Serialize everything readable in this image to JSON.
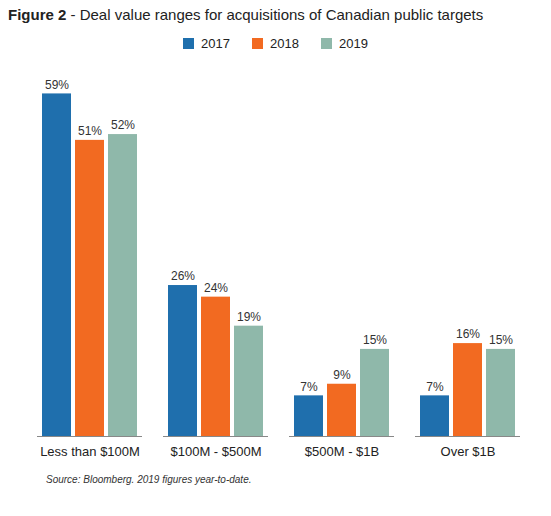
{
  "chart_data": {
    "type": "bar",
    "title": "Figure 2 - Deal value ranges for acquisitions of Canadian public targets",
    "caption": "Source: Bloomberg. 2019 figures year-to-date.",
    "categories": [
      "Less than $100M",
      "$100M - $500M",
      "$500M - $1B",
      "Over $1B"
    ],
    "series": [
      {
        "name": "2017",
        "color": "#1f6fad",
        "values": [
          59,
          26,
          7,
          7
        ],
        "value_labels": [
          "59%",
          "26%",
          "7%",
          "7%"
        ]
      },
      {
        "name": "2018",
        "color": "#f26a21",
        "values": [
          51,
          24,
          9,
          16
        ],
        "value_labels": [
          "51%",
          "24%",
          "9%",
          "16%"
        ]
      },
      {
        "name": "2019",
        "color": "#8fb8aa",
        "values": [
          52,
          19,
          15,
          15
        ],
        "value_labels": [
          "52%",
          "19%",
          "15%",
          "15%"
        ]
      }
    ],
    "ylim": [
      0,
      62
    ],
    "data_labels": true,
    "tick_labels": "x",
    "legend": "top"
  }
}
